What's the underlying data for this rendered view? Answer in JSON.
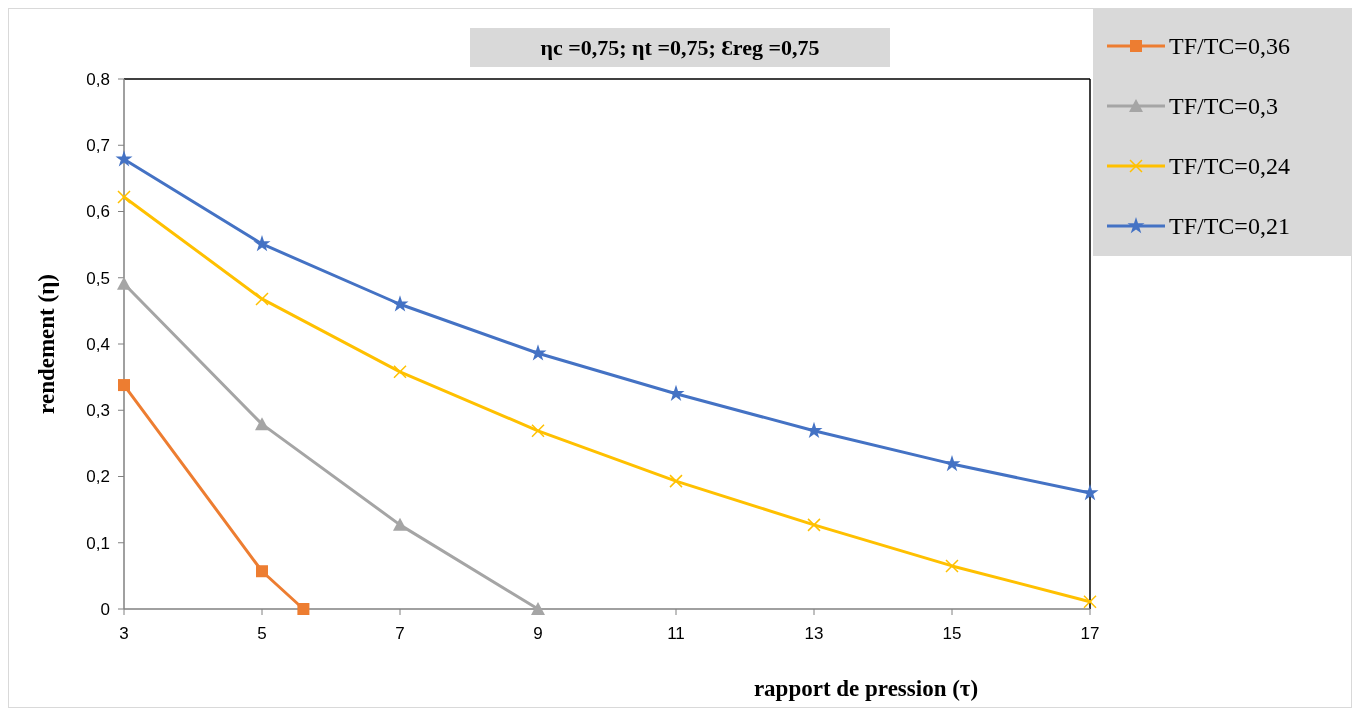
{
  "chart_data": {
    "type": "line",
    "title": "ηc =0,75; ηt =0,75; Ɛreg =0,75",
    "xlabel": "rapport de pression (τ)",
    "ylabel": "rendement (η)",
    "xlim": [
      3,
      17
    ],
    "xticks": [
      3,
      5,
      7,
      9,
      11,
      13,
      15,
      17
    ],
    "ylim": [
      0,
      0.8
    ],
    "yticks": [
      {
        "value": 0,
        "label": "0"
      },
      {
        "value": 0.1,
        "label": "0,1"
      },
      {
        "value": 0.2,
        "label": "0,2"
      },
      {
        "value": 0.3,
        "label": "0,3"
      },
      {
        "value": 0.4,
        "label": "0,4"
      },
      {
        "value": 0.5,
        "label": "0,5"
      },
      {
        "value": 0.6,
        "label": "0,6"
      },
      {
        "value": 0.7,
        "label": "0,7"
      },
      {
        "value": 0.8,
        "label": "0,8"
      }
    ],
    "grid": false,
    "legend": "top right",
    "line_style": "solid",
    "series": [
      {
        "name": "TF/TC=0,36",
        "color": "#ed7d31",
        "marker": "square",
        "x": [
          3,
          5,
          5.6
        ],
        "values": [
          0.338,
          0.057,
          0
        ]
      },
      {
        "name": "TF/TC=0,3",
        "color": "#a5a5a5",
        "marker": "triangle",
        "x": [
          3,
          5,
          7,
          9
        ],
        "values": [
          0.491,
          0.279,
          0.127,
          0
        ]
      },
      {
        "name": "TF/TC=0,24",
        "color": "#ffc000",
        "marker": "cross",
        "x": [
          3,
          5,
          7,
          9,
          11,
          13,
          15,
          17
        ],
        "values": [
          0.622,
          0.468,
          0.358,
          0.269,
          0.193,
          0.127,
          0.065,
          0.011
        ]
      },
      {
        "name": "TF/TC=0,21",
        "color": "#4472c4",
        "marker": "star",
        "x": [
          3,
          5,
          7,
          9,
          11,
          13,
          15,
          17
        ],
        "values": [
          0.679,
          0.551,
          0.46,
          0.386,
          0.325,
          0.269,
          0.219,
          0.175
        ]
      }
    ]
  }
}
